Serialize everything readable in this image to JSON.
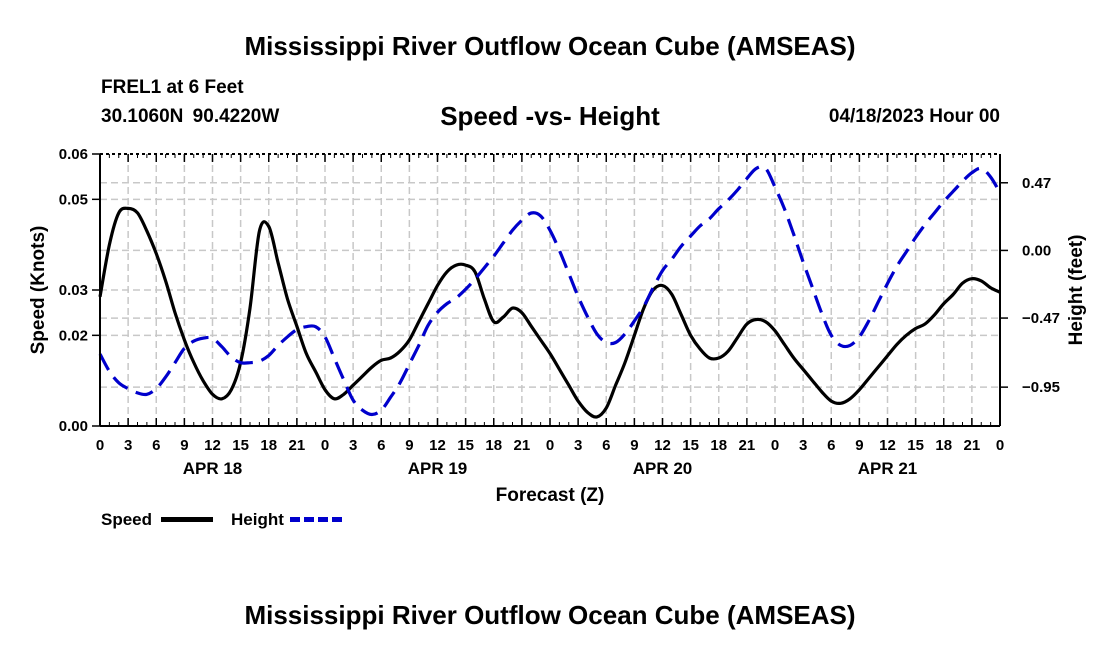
{
  "page": {
    "title_top": "Mississippi River Outflow Ocean Cube (AMSEAS)",
    "title_bottom": "Mississippi River Outflow Ocean Cube (AMSEAS)",
    "station_name": "FREL1 at 6 Feet",
    "station_coords": "30.1060N  90.4220W",
    "subtitle": "Speed -vs- Height",
    "date": "04/18/2023 Hour 00"
  },
  "legend": {
    "speed_label": "Speed",
    "height_label": "Height"
  },
  "colors": {
    "speed": "#000000",
    "height": "#0000cc",
    "grid": "#c8c8c8"
  },
  "chart_data": {
    "type": "line",
    "xlabel": "Forecast (Z)",
    "ylabel": "Speed (Knots)",
    "y2label": "Height (feet)",
    "xlim": [
      0,
      96
    ],
    "ylim": [
      0,
      0.06
    ],
    "y2lim": [
      -1.22,
      0.67
    ],
    "x_ticks": [
      0,
      3,
      6,
      9,
      12,
      15,
      18,
      21,
      24,
      27,
      30,
      33,
      36,
      39,
      42,
      45,
      48,
      51,
      54,
      57,
      60,
      63,
      66,
      69,
      72,
      75,
      78,
      81,
      84,
      87,
      90,
      93,
      96
    ],
    "x_tick_labels": [
      "0",
      "3",
      "6",
      "9",
      "12",
      "15",
      "18",
      "21",
      "0",
      "3",
      "6",
      "9",
      "12",
      "15",
      "18",
      "21",
      "0",
      "3",
      "6",
      "9",
      "12",
      "15",
      "18",
      "21",
      "0",
      "3",
      "6",
      "9",
      "12",
      "15",
      "18",
      "21",
      "0"
    ],
    "date_labels": [
      {
        "x": 12,
        "label": "APR 18"
      },
      {
        "x": 36,
        "label": "APR 19"
      },
      {
        "x": 60,
        "label": "APR 20"
      },
      {
        "x": 84,
        "label": "APR 21"
      }
    ],
    "y_ticks": [
      0.0,
      0.02,
      0.03,
      0.05,
      0.06
    ],
    "y_tick_labels": [
      "0.00",
      "0.02",
      "0.03",
      "0.05",
      "0.06"
    ],
    "y2_ticks": [
      0.47,
      0.0,
      -0.47,
      -0.95
    ],
    "y2_tick_labels": [
      "0.47",
      "0.00",
      "−0.47",
      "−0.95"
    ],
    "grid": true,
    "series": [
      {
        "name": "Speed",
        "axis": "left",
        "style": "solid",
        "x": [
          0,
          1,
          2,
          3,
          4,
          5,
          6,
          7,
          8,
          9,
          10,
          11,
          12,
          13,
          14,
          15,
          16,
          17,
          18,
          19,
          20,
          21,
          22,
          23,
          24,
          25,
          26,
          27,
          28,
          29,
          30,
          31,
          32,
          33,
          34,
          35,
          36,
          37,
          38,
          39,
          40,
          41,
          42,
          43,
          44,
          45,
          46,
          47,
          48,
          49,
          50,
          51,
          52,
          53,
          54,
          55,
          56,
          57,
          58,
          59,
          60,
          61,
          62,
          63,
          64,
          65,
          66,
          67,
          68,
          69,
          70,
          71,
          72,
          73,
          74,
          75,
          76,
          77,
          78,
          79,
          80,
          81,
          82,
          83,
          84,
          85,
          86,
          87,
          88,
          89,
          90,
          91,
          92,
          93,
          94,
          95,
          96
        ],
        "values": [
          0.0285,
          0.04,
          0.047,
          0.048,
          0.047,
          0.043,
          0.038,
          0.032,
          0.025,
          0.019,
          0.014,
          0.01,
          0.007,
          0.006,
          0.008,
          0.014,
          0.026,
          0.043,
          0.044,
          0.036,
          0.028,
          0.022,
          0.016,
          0.012,
          0.008,
          0.006,
          0.007,
          0.009,
          0.011,
          0.013,
          0.0145,
          0.015,
          0.0165,
          0.019,
          0.023,
          0.027,
          0.031,
          0.034,
          0.0355,
          0.0355,
          0.034,
          0.028,
          0.023,
          0.024,
          0.026,
          0.025,
          0.022,
          0.019,
          0.016,
          0.0125,
          0.009,
          0.0055,
          0.003,
          0.002,
          0.004,
          0.009,
          0.014,
          0.02,
          0.026,
          0.03,
          0.031,
          0.029,
          0.0245,
          0.02,
          0.017,
          0.015,
          0.015,
          0.0165,
          0.0195,
          0.0225,
          0.0235,
          0.023,
          0.021,
          0.018,
          0.015,
          0.0125,
          0.01,
          0.0075,
          0.0055,
          0.005,
          0.006,
          0.008,
          0.0105,
          0.013,
          0.0155,
          0.018,
          0.02,
          0.0215,
          0.0225,
          0.0245,
          0.027,
          0.029,
          0.0315,
          0.0325,
          0.032,
          0.0305,
          0.0295
        ]
      },
      {
        "name": "Height",
        "axis": "right",
        "style": "dashed",
        "x": [
          0,
          1,
          2,
          3,
          4,
          5,
          6,
          7,
          8,
          9,
          10,
          11,
          12,
          13,
          14,
          15,
          16,
          17,
          18,
          19,
          20,
          21,
          22,
          23,
          24,
          25,
          26,
          27,
          28,
          29,
          30,
          31,
          32,
          33,
          34,
          35,
          36,
          37,
          38,
          39,
          40,
          41,
          42,
          43,
          44,
          45,
          46,
          47,
          48,
          49,
          50,
          51,
          52,
          53,
          54,
          55,
          56,
          57,
          58,
          59,
          60,
          61,
          62,
          63,
          64,
          65,
          66,
          67,
          68,
          69,
          70,
          71,
          72,
          73,
          74,
          75,
          76,
          77,
          78,
          79,
          80,
          81,
          82,
          83,
          84,
          85,
          86,
          87,
          88,
          89,
          90,
          91,
          92,
          93,
          94,
          95,
          96
        ],
        "values": [
          -0.72,
          -0.84,
          -0.92,
          -0.96,
          -0.99,
          -1.0,
          -0.96,
          -0.88,
          -0.78,
          -0.68,
          -0.63,
          -0.61,
          -0.61,
          -0.67,
          -0.74,
          -0.78,
          -0.78,
          -0.77,
          -0.73,
          -0.66,
          -0.6,
          -0.55,
          -0.53,
          -0.53,
          -0.6,
          -0.75,
          -0.9,
          -1.04,
          -1.11,
          -1.14,
          -1.11,
          -1.02,
          -0.92,
          -0.79,
          -0.66,
          -0.52,
          -0.43,
          -0.37,
          -0.33,
          -0.27,
          -0.2,
          -0.12,
          -0.04,
          0.05,
          0.14,
          0.21,
          0.26,
          0.24,
          0.14,
          0.0,
          -0.16,
          -0.32,
          -0.46,
          -0.58,
          -0.64,
          -0.64,
          -0.58,
          -0.49,
          -0.39,
          -0.26,
          -0.14,
          -0.06,
          0.03,
          0.1,
          0.17,
          0.22,
          0.29,
          0.35,
          0.42,
          0.5,
          0.57,
          0.57,
          0.44,
          0.29,
          0.11,
          -0.08,
          -0.26,
          -0.44,
          -0.59,
          -0.66,
          -0.66,
          -0.6,
          -0.49,
          -0.36,
          -0.23,
          -0.11,
          -0.01,
          0.09,
          0.18,
          0.26,
          0.34,
          0.41,
          0.48,
          0.54,
          0.57,
          0.51,
          0.4
        ]
      }
    ]
  }
}
